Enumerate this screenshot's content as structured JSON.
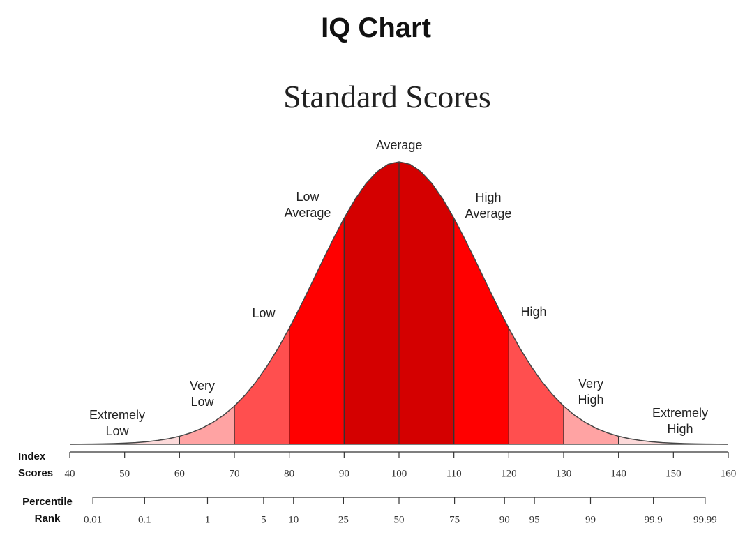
{
  "chart_data": {
    "type": "area",
    "title": "IQ Chart",
    "subtitle": "Standard Scores",
    "xlabel": "Index Scores",
    "x2label": "Percentile Rank",
    "xlim": [
      40,
      160
    ],
    "xticks": [
      40,
      50,
      60,
      70,
      80,
      90,
      100,
      110,
      120,
      130,
      140,
      150,
      160
    ],
    "x2lim": [
      0.01,
      99.99
    ],
    "x2ticks": [
      0.01,
      0.1,
      1,
      5,
      10,
      25,
      50,
      75,
      90,
      95,
      99,
      99.9,
      99.99
    ],
    "bands": [
      {
        "name": "Extremely Low",
        "range": [
          40,
          60
        ],
        "color": "#fcd9d9"
      },
      {
        "name": "Very Low",
        "range": [
          60,
          70
        ],
        "color": "#ffa3a3"
      },
      {
        "name": "Low",
        "range": [
          70,
          80
        ],
        "color": "#ff4f4f"
      },
      {
        "name": "Low Average",
        "range": [
          80,
          90
        ],
        "color": "#ff0000"
      },
      {
        "name": "Average",
        "range": [
          90,
          110
        ],
        "color": "#d40000"
      },
      {
        "name": "High Average",
        "range": [
          110,
          120
        ],
        "color": "#ff0000"
      },
      {
        "name": "High",
        "range": [
          120,
          130
        ],
        "color": "#ff4f4f"
      },
      {
        "name": "Very High",
        "range": [
          130,
          140
        ],
        "color": "#ffa3a3"
      },
      {
        "name": "Extremely High",
        "range": [
          140,
          160
        ],
        "color": "#fcd9d9"
      }
    ]
  }
}
